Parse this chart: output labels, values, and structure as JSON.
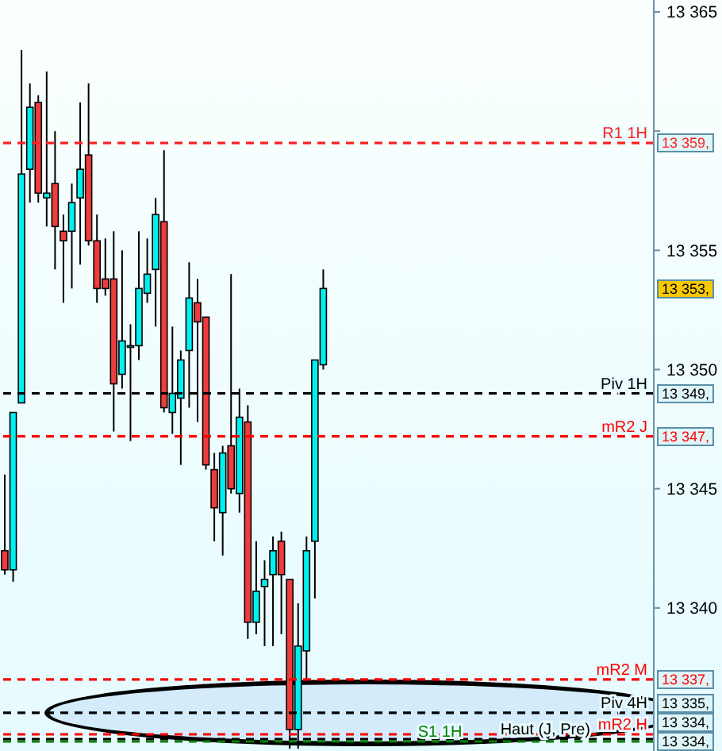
{
  "chart_data": {
    "type": "candlestick",
    "categories": [
      null,
      null,
      null,
      null,
      null,
      null,
      null,
      null,
      null,
      null,
      null,
      null,
      null,
      null,
      null,
      null,
      null,
      null,
      null,
      null,
      null,
      null,
      null,
      null,
      null,
      null,
      null,
      null,
      null,
      null,
      null,
      null,
      null,
      null,
      null,
      null,
      null,
      null,
      null,
      null,
      null,
      null,
      null,
      null,
      null,
      null,
      null,
      null,
      null,
      null,
      null,
      null,
      null,
      null,
      null,
      null,
      null,
      null,
      null,
      null,
      null,
      null,
      null,
      null,
      null,
      null,
      null,
      null,
      null,
      null,
      null,
      null,
      null,
      null,
      null,
      null,
      null,
      null
    ],
    "ohlc": [
      [
        13342.4,
        13345.6,
        13341.4,
        13341.6
      ],
      [
        13341.6,
        13348.2,
        13341.1,
        13348.2
      ],
      [
        13348.6,
        13363.4,
        13348.6,
        13358.2
      ],
      [
        13358.4,
        13362.0,
        13357.0,
        13361.0
      ],
      [
        13361.2,
        13361.5,
        13357.0,
        13357.4
      ],
      [
        13357.2,
        13362.5,
        13356.0,
        13357.4
      ],
      [
        13357.8,
        13360.0,
        13354.2,
        13356.0
      ],
      [
        13355.8,
        13356.5,
        13352.8,
        13355.4
      ],
      [
        13355.8,
        13357.8,
        13353.4,
        13357.0
      ],
      [
        13357.2,
        13361.2,
        13354.4,
        13358.4
      ],
      [
        13359.0,
        13362.0,
        13355.2,
        13355.4
      ],
      [
        13355.4,
        13356.5,
        13352.8,
        13353.4
      ],
      [
        13353.8,
        13355.5,
        13353.1,
        13353.4
      ],
      [
        13353.8,
        13355.8,
        13347.4,
        13349.4
      ],
      [
        13349.8,
        13355.0,
        13349.2,
        13351.2
      ],
      [
        13351.0,
        13351.9,
        13347.0,
        13351.0
      ],
      [
        13351.0,
        13355.8,
        13350.4,
        13353.4
      ],
      [
        13353.2,
        13355.5,
        13352.8,
        13354.0
      ],
      [
        13354.2,
        13357.2,
        13351.8,
        13356.5
      ],
      [
        13356.2,
        13359.2,
        13348.2,
        13348.4
      ],
      [
        13348.2,
        13351.8,
        13347.3,
        13349.0
      ],
      [
        13348.8,
        13350.8,
        13346.0,
        13350.4
      ],
      [
        13350.8,
        13354.5,
        13348.4,
        13353.0
      ],
      [
        13352.8,
        13353.8,
        13347.8,
        13352.0
      ],
      [
        13352.2,
        13352.2,
        13345.8,
        13346.0
      ],
      [
        13345.8,
        13346.5,
        13342.8,
        13344.2
      ],
      [
        13344.0,
        13346.8,
        13342.2,
        13346.5
      ],
      [
        13346.8,
        13354.0,
        13344.8,
        13345.0
      ],
      [
        13344.8,
        13349.2,
        13344.0,
        13348.0
      ],
      [
        13347.8,
        13348.5,
        13338.7,
        13339.4
      ],
      [
        13339.4,
        13342.8,
        13338.9,
        13340.7
      ],
      [
        13340.9,
        13342.0,
        13338.4,
        13341.2
      ],
      [
        13341.4,
        13343.0,
        13338.4,
        13342.4
      ],
      [
        13342.8,
        13343.2,
        13338.9,
        13341.4
      ],
      [
        13341.2,
        13341.2,
        13334.1,
        13334.9
      ],
      [
        13334.9,
        13340.2,
        13334.1,
        13338.4
      ],
      [
        13338.2,
        13343.0,
        13336.9,
        13342.4
      ],
      [
        13342.8,
        13350.4,
        13340.4,
        13350.4
      ],
      [
        13350.2,
        13354.2,
        13350.0,
        13353.4
      ],
      null,
      null,
      null,
      null,
      null,
      null,
      null,
      null,
      null,
      null,
      null,
      null,
      null,
      null,
      null,
      null,
      null,
      null,
      null,
      null,
      null,
      null,
      null,
      null,
      null,
      null,
      null,
      null,
      null,
      null,
      null,
      null,
      null,
      null,
      null,
      null,
      null,
      null,
      null
    ],
    "colors": [
      "#f03c3c",
      "#00f0f0",
      "#00f0f0",
      "#00f0f0",
      "#f03c3c",
      "#00f0f0",
      "#f03c3c",
      "#f03c3c",
      "#00f0f0",
      "#00f0f0",
      "#f03c3c",
      "#f03c3c",
      "#f03c3c",
      "#f03c3c",
      "#00f0f0",
      "#00f0f0",
      "#00f0f0",
      "#00f0f0",
      "#00f0f0",
      "#f03c3c",
      "#00f0f0",
      "#00f0f0",
      "#00f0f0",
      "#f03c3c",
      "#f03c3c",
      "#f03c3c",
      "#00f0f0",
      "#f03c3c",
      "#00f0f0",
      "#f03c3c",
      "#00f0f0",
      "#00f0f0",
      "#00f0f0",
      "#f03c3c",
      "#f03c3c",
      "#00f0f0",
      "#00f0f0",
      "#00f0f0",
      "#00f0f0",
      null,
      null,
      null,
      null,
      null,
      null,
      null,
      null,
      null,
      null,
      null,
      null,
      null,
      null,
      null,
      null,
      null,
      null,
      null,
      null,
      null,
      null,
      null,
      null,
      null,
      null,
      null,
      null,
      null,
      null,
      null,
      null,
      null,
      null,
      null,
      null,
      null,
      null,
      null
    ],
    "ylim": [
      13334.0,
      13365.5
    ],
    "yticks": [
      {
        "value": 13340,
        "label": "13 340"
      },
      {
        "value": 13345,
        "label": "13 345"
      },
      {
        "value": 13350,
        "label": "13 350"
      },
      {
        "value": 13355,
        "label": "13 355"
      },
      {
        "value": 13360,
        "label": null
      },
      {
        "value": 13365,
        "label": "13 365"
      }
    ],
    "tick_labels": "y",
    "ref_lines": [
      {
        "axis": "y",
        "value": 13359.5,
        "label": "R1 1H",
        "color": "#ff2020",
        "line_style": "dashed"
      },
      {
        "axis": "y",
        "value": 13349.0,
        "label": "Piv 1H",
        "color": "#000000",
        "line_style": "dashed"
      },
      {
        "axis": "y",
        "value": 13347.2,
        "label": "mR2 J",
        "color": "#ff0000",
        "line_style": "dashed"
      },
      {
        "axis": "y",
        "value": 13337.0,
        "label": "mR2 M",
        "color": "#ff0000",
        "line_style": "dashed"
      },
      {
        "axis": "y",
        "value": 13335.6,
        "label": "Piv 4H",
        "color": "#000000",
        "line_style": "dashed"
      },
      {
        "axis": "y",
        "value": 13334.7,
        "label": "mR2 H",
        "color": "#ff0000",
        "line_style": "dashed"
      },
      {
        "axis": "y",
        "value": 13334.5,
        "label": "Haut (J, Pre)",
        "color": "#000000",
        "line_style": "dashed"
      },
      {
        "axis": "y",
        "value": 13334.4,
        "label": "S1 1H",
        "color": "#008000",
        "line_style": "dashed"
      }
    ],
    "bands": [
      {
        "axis": "y",
        "from": 13334.2,
        "to": 13337.0,
        "color": "#d4ebfb"
      }
    ],
    "annotations": [
      {
        "text": "13 359,",
        "y": 13359.5
      },
      {
        "text": "13 353,",
        "y": 13353.4
      },
      {
        "text": "13 349,",
        "y": 13349.0
      },
      {
        "text": "13 347,",
        "y": 13347.2
      },
      {
        "text": "13 337,",
        "y": 13337.0
      },
      "13 335,",
      "13 334,",
      "13 334,"
    ]
  }
}
